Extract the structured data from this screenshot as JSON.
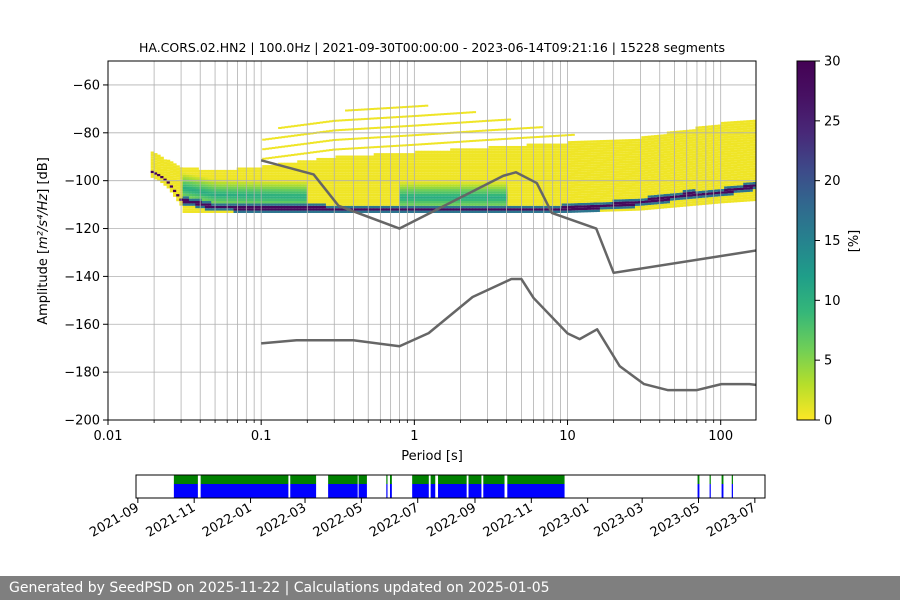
{
  "footer_text": "Generated by SeedPSD on 2025-11-22 | Calculations updated on 2025-01-05",
  "colors": {
    "colormap": "viridis_r",
    "noise_model": "#666666",
    "coverage_green": "#008000",
    "coverage_blue": "#0000ff",
    "grid": "#b0b0b0"
  },
  "chart_data": [
    {
      "type": "heatmap",
      "title": "HA.CORS.02.HN2 | 100.0Hz | 2021-09-30T00:00:00 - 2023-06-14T09:21:16 | 15228 segments",
      "xlabel": "Period [s]",
      "ylabel_prefix": "Amplitude [",
      "ylabel_unit": "m²/s⁴/Hz",
      "ylabel_suffix": "] [dB]",
      "x_scale": "log",
      "xlim": [
        0.01,
        170
      ],
      "ylim": [
        -200,
        -50
      ],
      "xticks": [
        {
          "value": 0.01,
          "label": "0.01"
        },
        {
          "value": 0.1,
          "label": "0.1"
        },
        {
          "value": 1,
          "label": "1"
        },
        {
          "value": 10,
          "label": "10"
        },
        {
          "value": 100,
          "label": "100"
        }
      ],
      "yticks": [
        {
          "value": -60,
          "label": "−60"
        },
        {
          "value": -80,
          "label": "−80"
        },
        {
          "value": -100,
          "label": "−100"
        },
        {
          "value": -120,
          "label": "−120"
        },
        {
          "value": -140,
          "label": "−140"
        },
        {
          "value": -160,
          "label": "−160"
        },
        {
          "value": -180,
          "label": "−180"
        },
        {
          "value": -200,
          "label": "−200"
        }
      ],
      "grid": true,
      "colorbar": {
        "label": "[%]",
        "range": [
          0,
          30
        ],
        "ticks": [
          {
            "value": 0,
            "label": "0"
          },
          {
            "value": 5,
            "label": "5"
          },
          {
            "value": 10,
            "label": "10"
          },
          {
            "value": 15,
            "label": "15"
          },
          {
            "value": 20,
            "label": "20"
          },
          {
            "value": 25,
            "label": "25"
          },
          {
            "value": 30,
            "label": "30"
          }
        ]
      },
      "psd_distribution": {
        "period_start": 0.019,
        "period_end": 170,
        "min_period_dense": 0.03,
        "mode_db": [
          [
            0.019,
            -96
          ],
          [
            0.022,
            -98
          ],
          [
            0.025,
            -101
          ],
          [
            0.03,
            -108
          ],
          [
            0.05,
            -111
          ],
          [
            0.1,
            -111.5
          ],
          [
            0.5,
            -112
          ],
          [
            1,
            -112
          ],
          [
            3,
            -112
          ],
          [
            8,
            -112
          ],
          [
            15,
            -111
          ],
          [
            30,
            -109
          ],
          [
            60,
            -106
          ],
          [
            100,
            -105
          ],
          [
            170,
            -102
          ]
        ],
        "upper_db": [
          [
            0.019,
            -88
          ],
          [
            0.03,
            -94
          ],
          [
            0.05,
            -96
          ],
          [
            0.1,
            -94
          ],
          [
            0.3,
            -90
          ],
          [
            1,
            -88
          ],
          [
            3,
            -86
          ],
          [
            10,
            -84
          ],
          [
            30,
            -82
          ],
          [
            100,
            -76
          ],
          [
            170,
            -74
          ]
        ],
        "lower_db": [
          [
            0.03,
            -113
          ],
          [
            1,
            -113
          ],
          [
            10,
            -113
          ],
          [
            30,
            -112
          ],
          [
            100,
            -109
          ],
          [
            170,
            -108
          ]
        ],
        "sparse_top_db": [
          [
            0.1,
            -80
          ],
          [
            0.3,
            -72
          ],
          [
            0.6,
            -66
          ],
          [
            1,
            -68
          ],
          [
            3,
            -72
          ],
          [
            10,
            -80
          ],
          [
            30,
            -90
          ]
        ]
      },
      "noise_models": [
        {
          "name": "high",
          "points": [
            [
              0.1,
              -91.5
            ],
            [
              0.22,
              -97.4
            ],
            [
              0.32,
              -110.5
            ],
            [
              0.8,
              -120
            ],
            [
              3.8,
              -98
            ],
            [
              4.6,
              -96.5
            ],
            [
              6.3,
              -101
            ],
            [
              7.9,
              -113.5
            ],
            [
              15.4,
              -120
            ],
            [
              20,
              -138.5
            ],
            [
              354.8,
              -126
            ]
          ]
        },
        {
          "name": "low",
          "points": [
            [
              0.1,
              -168
            ],
            [
              0.17,
              -166.7
            ],
            [
              0.4,
              -166.7
            ],
            [
              0.8,
              -169.2
            ],
            [
              1.24,
              -163.7
            ],
            [
              2.4,
              -148.6
            ],
            [
              4.3,
              -141.1
            ],
            [
              5,
              -141.1
            ],
            [
              6,
              -149
            ],
            [
              10,
              -163.8
            ],
            [
              12,
              -166.2
            ],
            [
              15.6,
              -162.1
            ],
            [
              21.9,
              -177.5
            ],
            [
              31.6,
              -185
            ],
            [
              45,
              -187.5
            ],
            [
              70,
              -187.5
            ],
            [
              101,
              -185
            ],
            [
              154,
              -185
            ],
            [
              328,
              -187.5
            ]
          ]
        }
      ]
    },
    {
      "type": "bar",
      "subtype": "timeline",
      "x_type": "date",
      "xlim": [
        "2021-08-30",
        "2023-07-12"
      ],
      "xticks": [
        "2021-09",
        "2021-11",
        "2022-01",
        "2022-03",
        "2022-05",
        "2022-07",
        "2022-09",
        "2022-11",
        "2023-01",
        "2023-03",
        "2023-05",
        "2023-07"
      ],
      "xtick_dates": [
        "2021-09-01",
        "2021-11-01",
        "2022-01-01",
        "2022-03-01",
        "2022-05-01",
        "2022-07-01",
        "2022-09-01",
        "2022-11-01",
        "2023-01-01",
        "2023-03-01",
        "2023-05-01",
        "2023-07-01"
      ],
      "segments": [
        [
          "2021-10-10",
          "2021-11-05"
        ],
        [
          "2021-11-08",
          "2022-02-11"
        ],
        [
          "2022-02-13",
          "2022-03-13"
        ],
        [
          "2022-03-26",
          "2022-04-27"
        ],
        [
          "2022-04-28",
          "2022-05-07"
        ],
        [
          "2022-05-28",
          "2022-05-29"
        ],
        [
          "2022-06-01",
          "2022-06-03"
        ],
        [
          "2022-06-25",
          "2022-07-13"
        ],
        [
          "2022-07-15",
          "2022-07-20"
        ],
        [
          "2022-07-23",
          "2022-08-23"
        ],
        [
          "2022-08-25",
          "2022-09-08"
        ],
        [
          "2022-09-10",
          "2022-10-03"
        ],
        [
          "2022-10-06",
          "2022-12-07"
        ],
        [
          "2023-04-30",
          "2023-05-02"
        ],
        [
          "2023-05-13",
          "2023-05-14"
        ],
        [
          "2023-05-26",
          "2023-05-28"
        ],
        [
          "2023-06-06",
          "2023-06-07"
        ]
      ]
    }
  ]
}
